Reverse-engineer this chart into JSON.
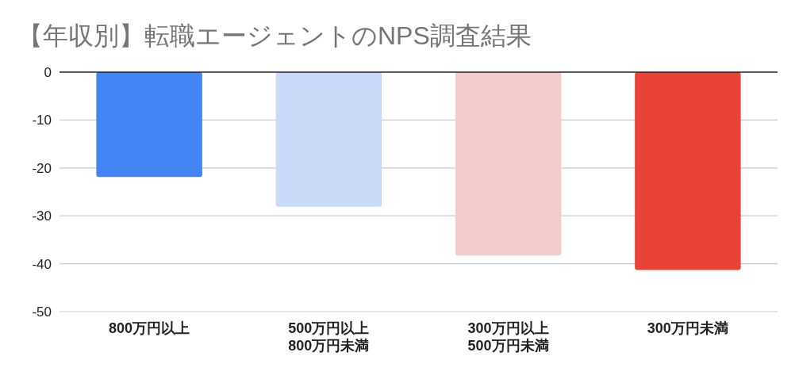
{
  "chart_data": {
    "type": "bar",
    "title": "【年収別】転職エージェントのNPS調査結果",
    "categories": [
      "800万円以上",
      "500万円以上\n800万円未満",
      "300万円以上\n500万円未満",
      "300万円未満"
    ],
    "values": [
      -21.9,
      -28.1,
      -38.3,
      -41.3
    ],
    "colors": [
      "#4285f4",
      "#c9daf8",
      "#f4cccc",
      "#ea4335"
    ],
    "ylim": [
      -50,
      0
    ],
    "yticks": [
      0,
      -10,
      -20,
      -30,
      -40,
      -50
    ],
    "grid": "y"
  }
}
